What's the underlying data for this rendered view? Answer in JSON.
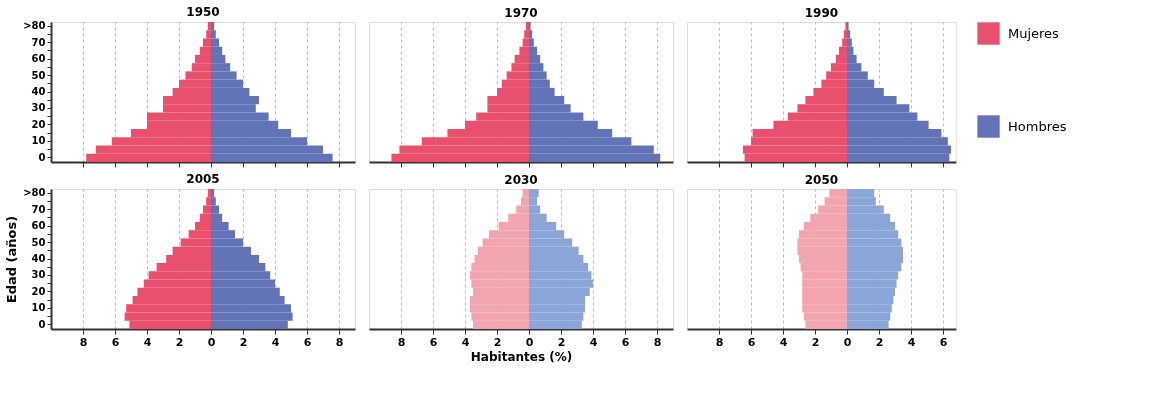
{
  "chart_data": [
    {
      "type": "bar",
      "orientation": "horizontal",
      "stacked": true,
      "title": "1950",
      "legend": "right",
      "grid": "x",
      "tick_labels": "y",
      "xlim": [
        -10,
        9
      ],
      "xticks": [
        {
          "value": -8,
          "label": null
        },
        {
          "value": -6,
          "label": null
        },
        {
          "value": -4,
          "label": null
        },
        {
          "value": -2,
          "label": null
        },
        {
          "value": 0,
          "label": null
        },
        {
          "value": 2,
          "label": null
        },
        {
          "value": 4,
          "label": null
        },
        {
          "value": 6,
          "label": null
        },
        {
          "value": 8,
          "label": null
        }
      ],
      "categories": [
        ">80",
        null,
        "70",
        null,
        "60",
        null,
        "50",
        null,
        "40",
        null,
        "30",
        null,
        "20",
        null,
        "10",
        null,
        "0"
      ],
      "series": [
        {
          "name": "Mujeres",
          "color": "#e9506e",
          "values": [
            -0.2,
            -0.3,
            -0.5,
            -0.7,
            -1.0,
            -1.2,
            -1.6,
            -2.0,
            -2.4,
            -3.0,
            -3.0,
            -4.0,
            -4.0,
            -5.0,
            -6.2,
            -7.2,
            -7.8
          ]
        },
        {
          "name": "Hombres",
          "color": "#6373b8",
          "values": [
            0.2,
            0.3,
            0.5,
            0.7,
            0.9,
            1.2,
            1.6,
            2.0,
            2.4,
            3.0,
            2.8,
            3.6,
            4.2,
            5.0,
            6.0,
            7.0,
            7.6
          ]
        }
      ]
    },
    {
      "type": "bar",
      "orientation": "horizontal",
      "stacked": true,
      "title": "1970",
      "grid": "x",
      "tick_labels": false,
      "xlim": [
        -10,
        9
      ],
      "xticks": [
        {
          "value": -8,
          "label": null
        },
        {
          "value": -6,
          "label": null
        },
        {
          "value": -4,
          "label": null
        },
        {
          "value": -2,
          "label": null
        },
        {
          "value": 0,
          "label": null
        },
        {
          "value": 2,
          "label": null
        },
        {
          "value": 4,
          "label": null
        },
        {
          "value": 6,
          "label": null
        },
        {
          "value": 8,
          "label": null
        }
      ],
      "categories": [
        null,
        null,
        null,
        null,
        null,
        null,
        null,
        null,
        null,
        null,
        null,
        null,
        null,
        null,
        null,
        null,
        null
      ],
      "series": [
        {
          "color": "#e9506e",
          "values": [
            -0.2,
            -0.3,
            -0.4,
            -0.6,
            -0.9,
            -1.1,
            -1.4,
            -1.7,
            -2.0,
            -2.6,
            -2.6,
            -3.3,
            -4.0,
            -5.1,
            -6.7,
            -8.1,
            -8.6
          ]
        },
        {
          "color": "#6373b8",
          "values": [
            0.1,
            0.2,
            0.3,
            0.5,
            0.7,
            0.9,
            1.1,
            1.3,
            1.6,
            2.2,
            2.6,
            3.4,
            4.3,
            5.2,
            6.4,
            7.8,
            8.2
          ]
        }
      ]
    },
    {
      "type": "bar",
      "orientation": "horizontal",
      "stacked": true,
      "title": "1990",
      "grid": "x",
      "tick_labels": false,
      "xlim": [
        -10,
        6.8
      ],
      "xticks": [
        {
          "value": -8,
          "label": null
        },
        {
          "value": -6,
          "label": null
        },
        {
          "value": -4,
          "label": null
        },
        {
          "value": -2,
          "label": null
        },
        {
          "value": 0,
          "label": null
        },
        {
          "value": 2,
          "label": null
        },
        {
          "value": 4,
          "label": null
        },
        {
          "value": 6,
          "label": null
        }
      ],
      "categories": [
        null,
        null,
        null,
        null,
        null,
        null,
        null,
        null,
        null,
        null,
        null,
        null,
        null,
        null,
        null,
        null,
        null
      ],
      "series": [
        {
          "color": "#e9506e",
          "values": [
            -0.1,
            -0.2,
            -0.3,
            -0.5,
            -0.7,
            -1.0,
            -1.3,
            -1.6,
            -2.1,
            -2.6,
            -3.1,
            -3.7,
            -4.6,
            -5.9,
            -6.0,
            -6.5,
            -6.4
          ]
        },
        {
          "color": "#6373b8",
          "values": [
            0.1,
            0.2,
            0.3,
            0.4,
            0.6,
            0.9,
            1.3,
            1.7,
            2.3,
            3.1,
            3.9,
            4.4,
            5.1,
            5.9,
            6.3,
            6.5,
            6.4
          ]
        }
      ]
    },
    {
      "type": "bar",
      "orientation": "horizontal",
      "stacked": true,
      "title": "2005",
      "ylabel": "Edad (años)",
      "grid": "x",
      "xlim": [
        -10,
        9
      ],
      "xticks": [
        {
          "value": -8,
          "label": "8"
        },
        {
          "value": -6,
          "label": "6"
        },
        {
          "value": -4,
          "label": "4"
        },
        {
          "value": -2,
          "label": "2"
        },
        0,
        2,
        4,
        6,
        8
      ],
      "categories": [
        ">80",
        null,
        "70",
        null,
        "60",
        null,
        "50",
        null,
        "40",
        null,
        "30",
        null,
        "20",
        null,
        "10",
        null,
        "0"
      ],
      "series": [
        {
          "color": "#e9506e",
          "values": [
            -0.2,
            -0.3,
            -0.5,
            -0.7,
            -1.0,
            -1.4,
            -1.9,
            -2.4,
            -2.8,
            -3.4,
            -3.9,
            -4.2,
            -4.6,
            -4.9,
            -5.3,
            -5.4,
            -5.1
          ]
        },
        {
          "color": "#6373b8",
          "values": [
            0.2,
            0.3,
            0.5,
            0.7,
            1.1,
            1.5,
            2.0,
            2.5,
            3.0,
            3.4,
            3.7,
            4.0,
            4.3,
            4.6,
            5.0,
            5.1,
            4.8
          ]
        }
      ]
    },
    {
      "type": "bar",
      "orientation": "horizontal",
      "stacked": true,
      "title": "2030",
      "xlabel": "Habitantes (%)",
      "grid": "x",
      "tick_labels": "x",
      "xlim": [
        -10,
        9
      ],
      "xticks": [
        {
          "value": -8,
          "label": "8"
        },
        {
          "value": -6,
          "label": "6"
        },
        {
          "value": -4,
          "label": "4"
        },
        {
          "value": -2,
          "label": "2"
        },
        0,
        2,
        4,
        6,
        8
      ],
      "categories": [
        null,
        null,
        null,
        null,
        null,
        null,
        null,
        null,
        null,
        null,
        null,
        null,
        null,
        null,
        null,
        null,
        null
      ],
      "series": [
        {
          "color": "#f2a5ae",
          "values": [
            -0.4,
            -0.5,
            -0.8,
            -1.3,
            -1.9,
            -2.5,
            -2.9,
            -3.2,
            -3.4,
            -3.6,
            -3.7,
            -3.6,
            -3.5,
            -3.7,
            -3.7,
            -3.6,
            -3.5
          ]
        },
        {
          "color": "#8aa6d8",
          "values": [
            0.6,
            0.5,
            0.7,
            1.1,
            1.7,
            2.2,
            2.7,
            3.1,
            3.4,
            3.7,
            3.9,
            4.0,
            3.8,
            3.5,
            3.5,
            3.4,
            3.3
          ]
        }
      ]
    },
    {
      "type": "bar",
      "orientation": "horizontal",
      "stacked": true,
      "title": "2050",
      "grid": "x",
      "tick_labels": "x",
      "xlim": [
        -10,
        6.8
      ],
      "xticks": [
        {
          "value": -8,
          "label": "8"
        },
        {
          "value": -6,
          "label": "6"
        },
        {
          "value": -4,
          "label": "4"
        },
        {
          "value": -2,
          "label": "2"
        },
        0,
        2,
        4,
        6
      ],
      "categories": [
        null,
        null,
        null,
        null,
        null,
        null,
        null,
        null,
        null,
        null,
        null,
        null,
        null,
        null,
        null,
        null,
        null
      ],
      "series": [
        {
          "color": "#f2a5ae",
          "values": [
            -1.1,
            -1.4,
            -1.8,
            -2.3,
            -2.7,
            -3.0,
            -3.1,
            -3.1,
            -3.0,
            -2.9,
            -2.8,
            -2.8,
            -2.8,
            -2.8,
            -2.8,
            -2.7,
            -2.6
          ]
        },
        {
          "color": "#8aa6d8",
          "values": [
            1.7,
            1.8,
            2.3,
            2.7,
            3.0,
            3.2,
            3.4,
            3.5,
            3.5,
            3.4,
            3.2,
            3.1,
            3.0,
            2.9,
            2.8,
            2.7,
            2.6
          ]
        }
      ]
    }
  ]
}
